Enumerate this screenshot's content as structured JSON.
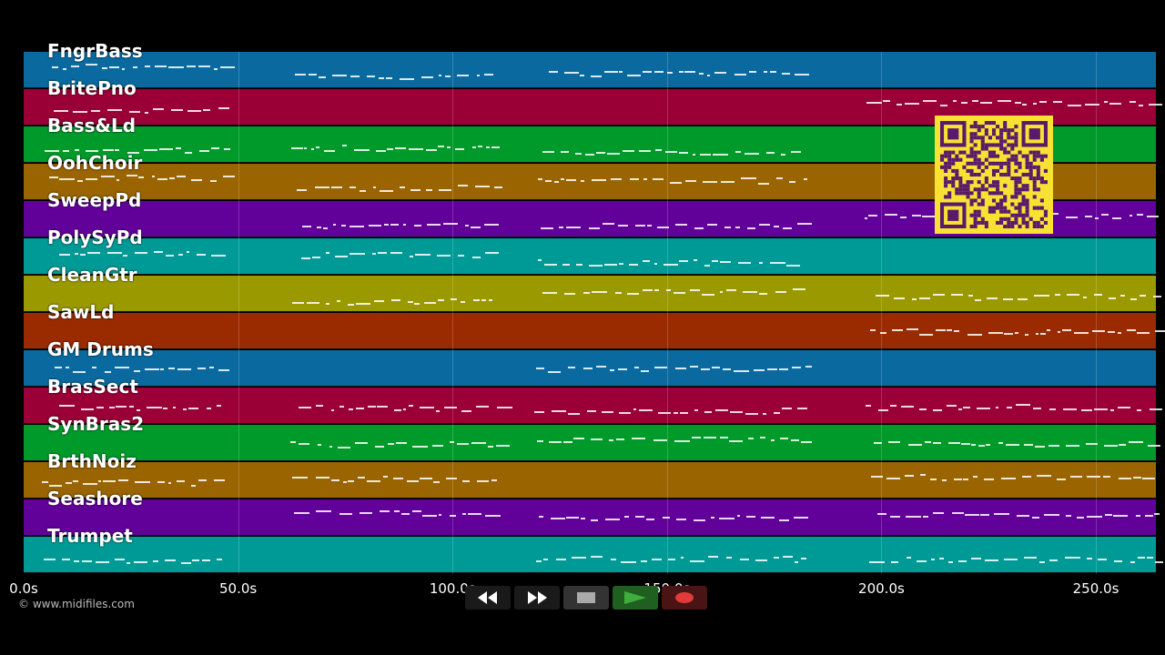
{
  "app": {
    "copyright": "© www.midifiles.com"
  },
  "tracks": [
    {
      "name": "FngrBass",
      "color": "#0a6aa0"
    },
    {
      "name": "BritePno",
      "color": "#9a0036"
    },
    {
      "name": "Bass&Ld",
      "color": "#009a2a"
    },
    {
      "name": "OohChoir",
      "color": "#9a6400"
    },
    {
      "name": "SweepPd",
      "color": "#62009a"
    },
    {
      "name": "PolySyPd",
      "color": "#009a96"
    },
    {
      "name": "CleanGtr",
      "color": "#9a9a00"
    },
    {
      "name": "SawLd",
      "color": "#9a2a00"
    },
    {
      "name": "GM Drums",
      "color": "#0a6aa0"
    },
    {
      "name": "BrasSect",
      "color": "#9a0036"
    },
    {
      "name": "SynBras2",
      "color": "#009a2a"
    },
    {
      "name": "BrthNoiz",
      "color": "#9a6400"
    },
    {
      "name": "Seashore",
      "color": "#62009a"
    },
    {
      "name": "Trumpet",
      "color": "#009a96"
    }
  ],
  "timeline": {
    "max_seconds": 264,
    "ticks": [
      {
        "seconds": 0,
        "label": "0.0s"
      },
      {
        "seconds": 50,
        "label": "50.0s"
      },
      {
        "seconds": 100,
        "label": "100.0s"
      },
      {
        "seconds": 150,
        "label": "150.0s"
      },
      {
        "seconds": 200,
        "label": "200.0s"
      },
      {
        "seconds": 250,
        "label": "250.0s"
      }
    ]
  },
  "transport": {
    "rewind_icon": "rewind-icon",
    "forward_icon": "fast-forward-icon",
    "stop_icon": "stop-icon",
    "play_icon": "play-icon",
    "record_icon": "record-icon",
    "play_color": "#3fae3f",
    "record_color": "#e03a3a"
  },
  "qr": {
    "fg": "#5a1a6a",
    "bg": "#f7e234"
  }
}
